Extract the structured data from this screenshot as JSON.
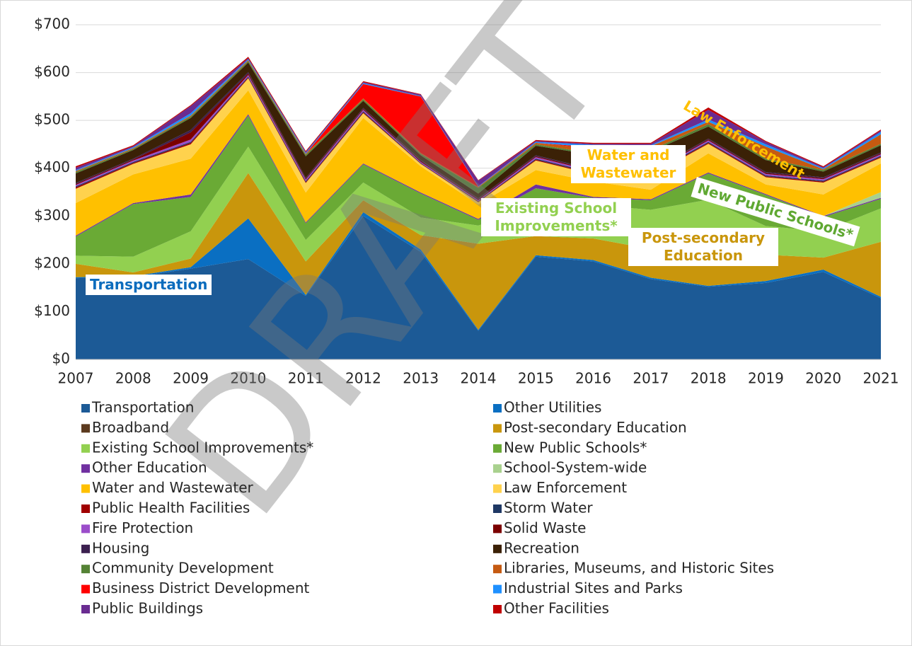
{
  "chart_data": {
    "type": "stacked_area",
    "x": [
      2007,
      2008,
      2009,
      2010,
      2011,
      2012,
      2013,
      2014,
      2015,
      2016,
      2017,
      2018,
      2019,
      2020,
      2021
    ],
    "xlim": [
      2007,
      2021
    ],
    "xticks": [
      2007,
      2008,
      2009,
      2010,
      2011,
      2012,
      2013,
      2014,
      2015,
      2016,
      2017,
      2018,
      2019,
      2020,
      2021
    ],
    "ylim": [
      0,
      700
    ],
    "yticks": [
      {
        "value": 0,
        "label": "$0"
      },
      {
        "value": 100,
        "label": "$100"
      },
      {
        "value": 200,
        "label": "$200"
      },
      {
        "value": 300,
        "label": "$300"
      },
      {
        "value": 400,
        "label": "$400"
      },
      {
        "value": 500,
        "label": "$500"
      },
      {
        "value": 600,
        "label": "$600"
      },
      {
        "value": 700,
        "label": "$700"
      }
    ],
    "grid": true,
    "watermark": "DRAFT",
    "annotations": [
      {
        "text": "Transportation",
        "color": "#0b6cbd"
      },
      {
        "text": "Existing School Improvements*",
        "color": "#92d050"
      },
      {
        "text": "Water and Wastewater",
        "color": "#ffc000"
      },
      {
        "text": "Post-secondary Education",
        "color": "#c9960c"
      },
      {
        "text": "New Public Schools*",
        "color": "#5fa832"
      },
      {
        "text": "Law Enforcement",
        "color": "#ffc000"
      }
    ],
    "series": [
      {
        "name": "Transportation",
        "color": "#1c5a96",
        "values": [
          170,
          172,
          190,
          210,
          133,
          300,
          225,
          60,
          215,
          205,
          168,
          152,
          160,
          183,
          128
        ]
      },
      {
        "name": "Other Utilities",
        "color": "#0a6fc2",
        "values": [
          2,
          2,
          3,
          85,
          2,
          8,
          5,
          2,
          3,
          3,
          3,
          2,
          4,
          5,
          3
        ]
      },
      {
        "name": "Broadband",
        "color": "#5b3a1e",
        "values": [
          0,
          0,
          0,
          0,
          0,
          0,
          0,
          0,
          0,
          0,
          0,
          0,
          0,
          0,
          0
        ]
      },
      {
        "name": "Post-secondary Education",
        "color": "#c9960c",
        "values": [
          28,
          8,
          18,
          95,
          70,
          25,
          30,
          180,
          40,
          45,
          60,
          60,
          55,
          25,
          115
        ]
      },
      {
        "name": "Existing School Improvements*",
        "color": "#92d050",
        "values": [
          17,
          33,
          57,
          55,
          45,
          37,
          37,
          38,
          60,
          70,
          82,
          120,
          60,
          55,
          70
        ]
      },
      {
        "name": "New Public Schools*",
        "color": "#6aaa35",
        "values": [
          40,
          110,
          72,
          65,
          35,
          38,
          50,
          12,
          40,
          15,
          20,
          55,
          65,
          30,
          20
        ]
      },
      {
        "name": "Other Education",
        "color": "#7030a0",
        "values": [
          2,
          2,
          5,
          3,
          2,
          2,
          2,
          2,
          8,
          2,
          2,
          2,
          2,
          2,
          2
        ]
      },
      {
        "name": "School-System-wide",
        "color": "#a9d18e",
        "values": [
          0,
          0,
          0,
          0,
          0,
          0,
          0,
          0,
          0,
          0,
          0,
          0,
          0,
          0,
          12
        ]
      },
      {
        "name": "Water and Wastewater",
        "color": "#ffc000",
        "values": [
          68,
          60,
          75,
          50,
          62,
          95,
          55,
          30,
          30,
          32,
          20,
          40,
          20,
          45,
          60
        ]
      },
      {
        "name": "Law Enforcement",
        "color": "#ffd24d",
        "values": [
          30,
          22,
          30,
          25,
          20,
          10,
          5,
          5,
          20,
          15,
          30,
          20,
          15,
          25,
          12
        ]
      },
      {
        "name": "Public Health Facilities",
        "color": "#a00000",
        "values": [
          3,
          2,
          3,
          2,
          2,
          2,
          1,
          1,
          2,
          2,
          2,
          2,
          2,
          2,
          2
        ]
      },
      {
        "name": "Storm Water",
        "color": "#1f3864",
        "values": [
          2,
          2,
          2,
          2,
          2,
          2,
          1,
          1,
          2,
          2,
          2,
          2,
          2,
          2,
          2
        ]
      },
      {
        "name": "Fire Protection",
        "color": "#9b4dca",
        "values": [
          3,
          3,
          5,
          3,
          3,
          3,
          2,
          2,
          3,
          3,
          2,
          3,
          3,
          3,
          3
        ]
      },
      {
        "name": "Solid Waste",
        "color": "#7b0000",
        "values": [
          2,
          2,
          15,
          3,
          2,
          2,
          2,
          2,
          2,
          2,
          2,
          2,
          2,
          2,
          2
        ]
      },
      {
        "name": "Housing",
        "color": "#3b1f4f",
        "values": [
          2,
          2,
          5,
          3,
          2,
          2,
          2,
          2,
          2,
          2,
          2,
          2,
          2,
          2,
          2
        ]
      },
      {
        "name": "Recreation",
        "color": "#3b2106",
        "values": [
          20,
          18,
          25,
          20,
          45,
          15,
          10,
          10,
          20,
          30,
          40,
          25,
          25,
          12,
          15
        ]
      },
      {
        "name": "Community Development",
        "color": "#548235",
        "values": [
          3,
          2,
          3,
          3,
          3,
          3,
          3,
          12,
          3,
          3,
          3,
          5,
          3,
          3,
          3
        ]
      },
      {
        "name": "Libraries, Museums, and Historic Sites",
        "color": "#c55a11",
        "values": [
          2,
          2,
          2,
          2,
          2,
          2,
          2,
          2,
          3,
          10,
          8,
          5,
          25,
          2,
          20
        ]
      },
      {
        "name": "Business District Development",
        "color": "#ff0000",
        "values": [
          0,
          0,
          0,
          0,
          0,
          30,
          118,
          0,
          0,
          3,
          0,
          0,
          0,
          0,
          0
        ]
      },
      {
        "name": "Industrial Sites and Parks",
        "color": "#1e90ff",
        "values": [
          2,
          2,
          5,
          2,
          2,
          2,
          1,
          1,
          2,
          5,
          2,
          5,
          5,
          2,
          5
        ]
      },
      {
        "name": "Public Buildings",
        "color": "#6a2c91",
        "values": [
          5,
          2,
          15,
          2,
          2,
          2,
          3,
          12,
          2,
          2,
          3,
          20,
          5,
          2,
          3
        ]
      },
      {
        "name": "Other Facilities",
        "color": "#c00000",
        "values": [
          3,
          2,
          2,
          3,
          2,
          2,
          1,
          1,
          2,
          2,
          2,
          5,
          2,
          2,
          2
        ]
      }
    ]
  }
}
